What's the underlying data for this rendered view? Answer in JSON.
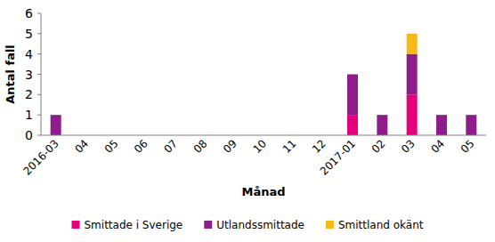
{
  "chart_data": {
    "type": "bar",
    "stacked": true,
    "categories": [
      "2016-03",
      "04",
      "05",
      "06",
      "07",
      "08",
      "09",
      "10",
      "11",
      "12",
      "2017-01",
      "02",
      "03",
      "04",
      "05"
    ],
    "series": [
      {
        "name": "Smittade i Sverige",
        "color": "#e5007d",
        "values": [
          0,
          0,
          0,
          0,
          0,
          0,
          0,
          0,
          0,
          0,
          1,
          0,
          2,
          0,
          0
        ]
      },
      {
        "name": "Utlandssmittade",
        "color": "#8c1d8a",
        "values": [
          1,
          0,
          0,
          0,
          0,
          0,
          0,
          0,
          0,
          0,
          2,
          1,
          2,
          1,
          1
        ]
      },
      {
        "name": "Smittland okänt",
        "color": "#f6b91a",
        "values": [
          0,
          0,
          0,
          0,
          0,
          0,
          0,
          0,
          0,
          0,
          0,
          0,
          1,
          0,
          0
        ]
      }
    ],
    "x_label": "Månad",
    "y_label": "Antal fall",
    "ylim": [
      0,
      6
    ],
    "yticks": [
      0,
      1,
      2,
      3,
      4,
      5,
      6
    ],
    "grid": false,
    "legend": "bottom"
  }
}
